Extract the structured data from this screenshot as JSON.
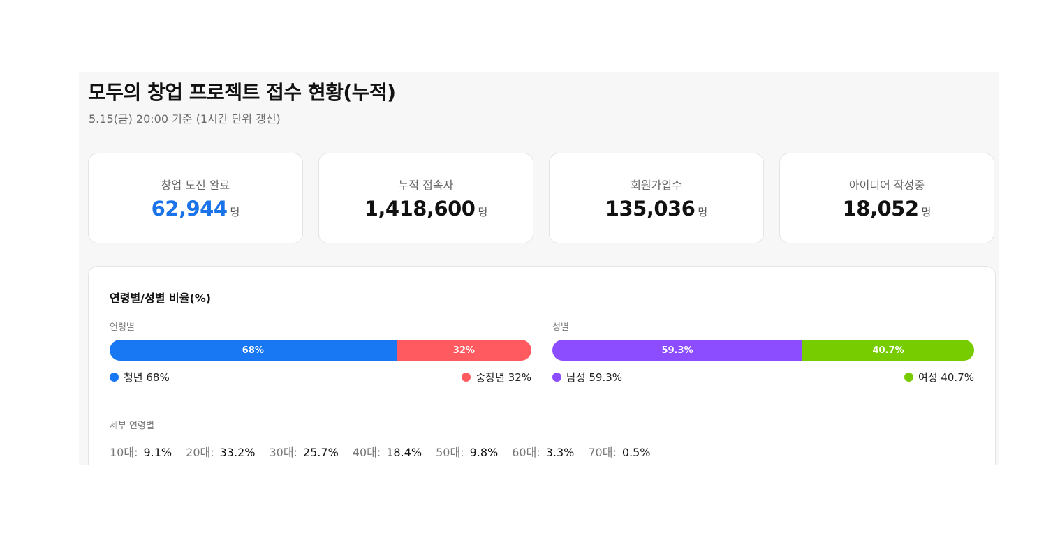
{
  "header": {
    "title": "모두의 창업 프로젝트 접수 현황(누적)",
    "subtitle": "5.15(금) 20:00 기준 (1시간 단위 갱신)"
  },
  "stats": [
    {
      "label": "창업 도전 완료",
      "value": "62,944",
      "unit": "명",
      "highlight": true
    },
    {
      "label": "누적 접속자",
      "value": "1,418,600",
      "unit": "명",
      "highlight": false
    },
    {
      "label": "회원가입수",
      "value": "135,036",
      "unit": "명",
      "highlight": false
    },
    {
      "label": "아이디어 작성중",
      "value": "18,052",
      "unit": "명",
      "highlight": false
    }
  ],
  "ratio": {
    "title": "연령별/성별 비율(%)",
    "age": {
      "label": "연령별",
      "segments": [
        {
          "label": "68%",
          "value": 68,
          "color": "#1877f2",
          "legend": "청년 68%"
        },
        {
          "label": "32%",
          "value": 32,
          "color": "#ff5a5f",
          "legend": "중장년 32%"
        }
      ]
    },
    "gender": {
      "label": "성별",
      "segments": [
        {
          "label": "59.3%",
          "value": 59.3,
          "color": "#8c4cff",
          "legend": "남성 59.3%"
        },
        {
          "label": "40.7%",
          "value": 40.7,
          "color": "#77cc00",
          "legend": "여성 40.7%"
        }
      ]
    },
    "detail": {
      "label": "세부 연령별",
      "items": [
        {
          "age": "10대:",
          "pct": "9.1%"
        },
        {
          "age": "20대:",
          "pct": "33.2%"
        },
        {
          "age": "30대:",
          "pct": "25.7%"
        },
        {
          "age": "40대:",
          "pct": "18.4%"
        },
        {
          "age": "50대:",
          "pct": "9.8%"
        },
        {
          "age": "60대:",
          "pct": "3.3%"
        },
        {
          "age": "70대:",
          "pct": "0.5%"
        }
      ]
    }
  }
}
